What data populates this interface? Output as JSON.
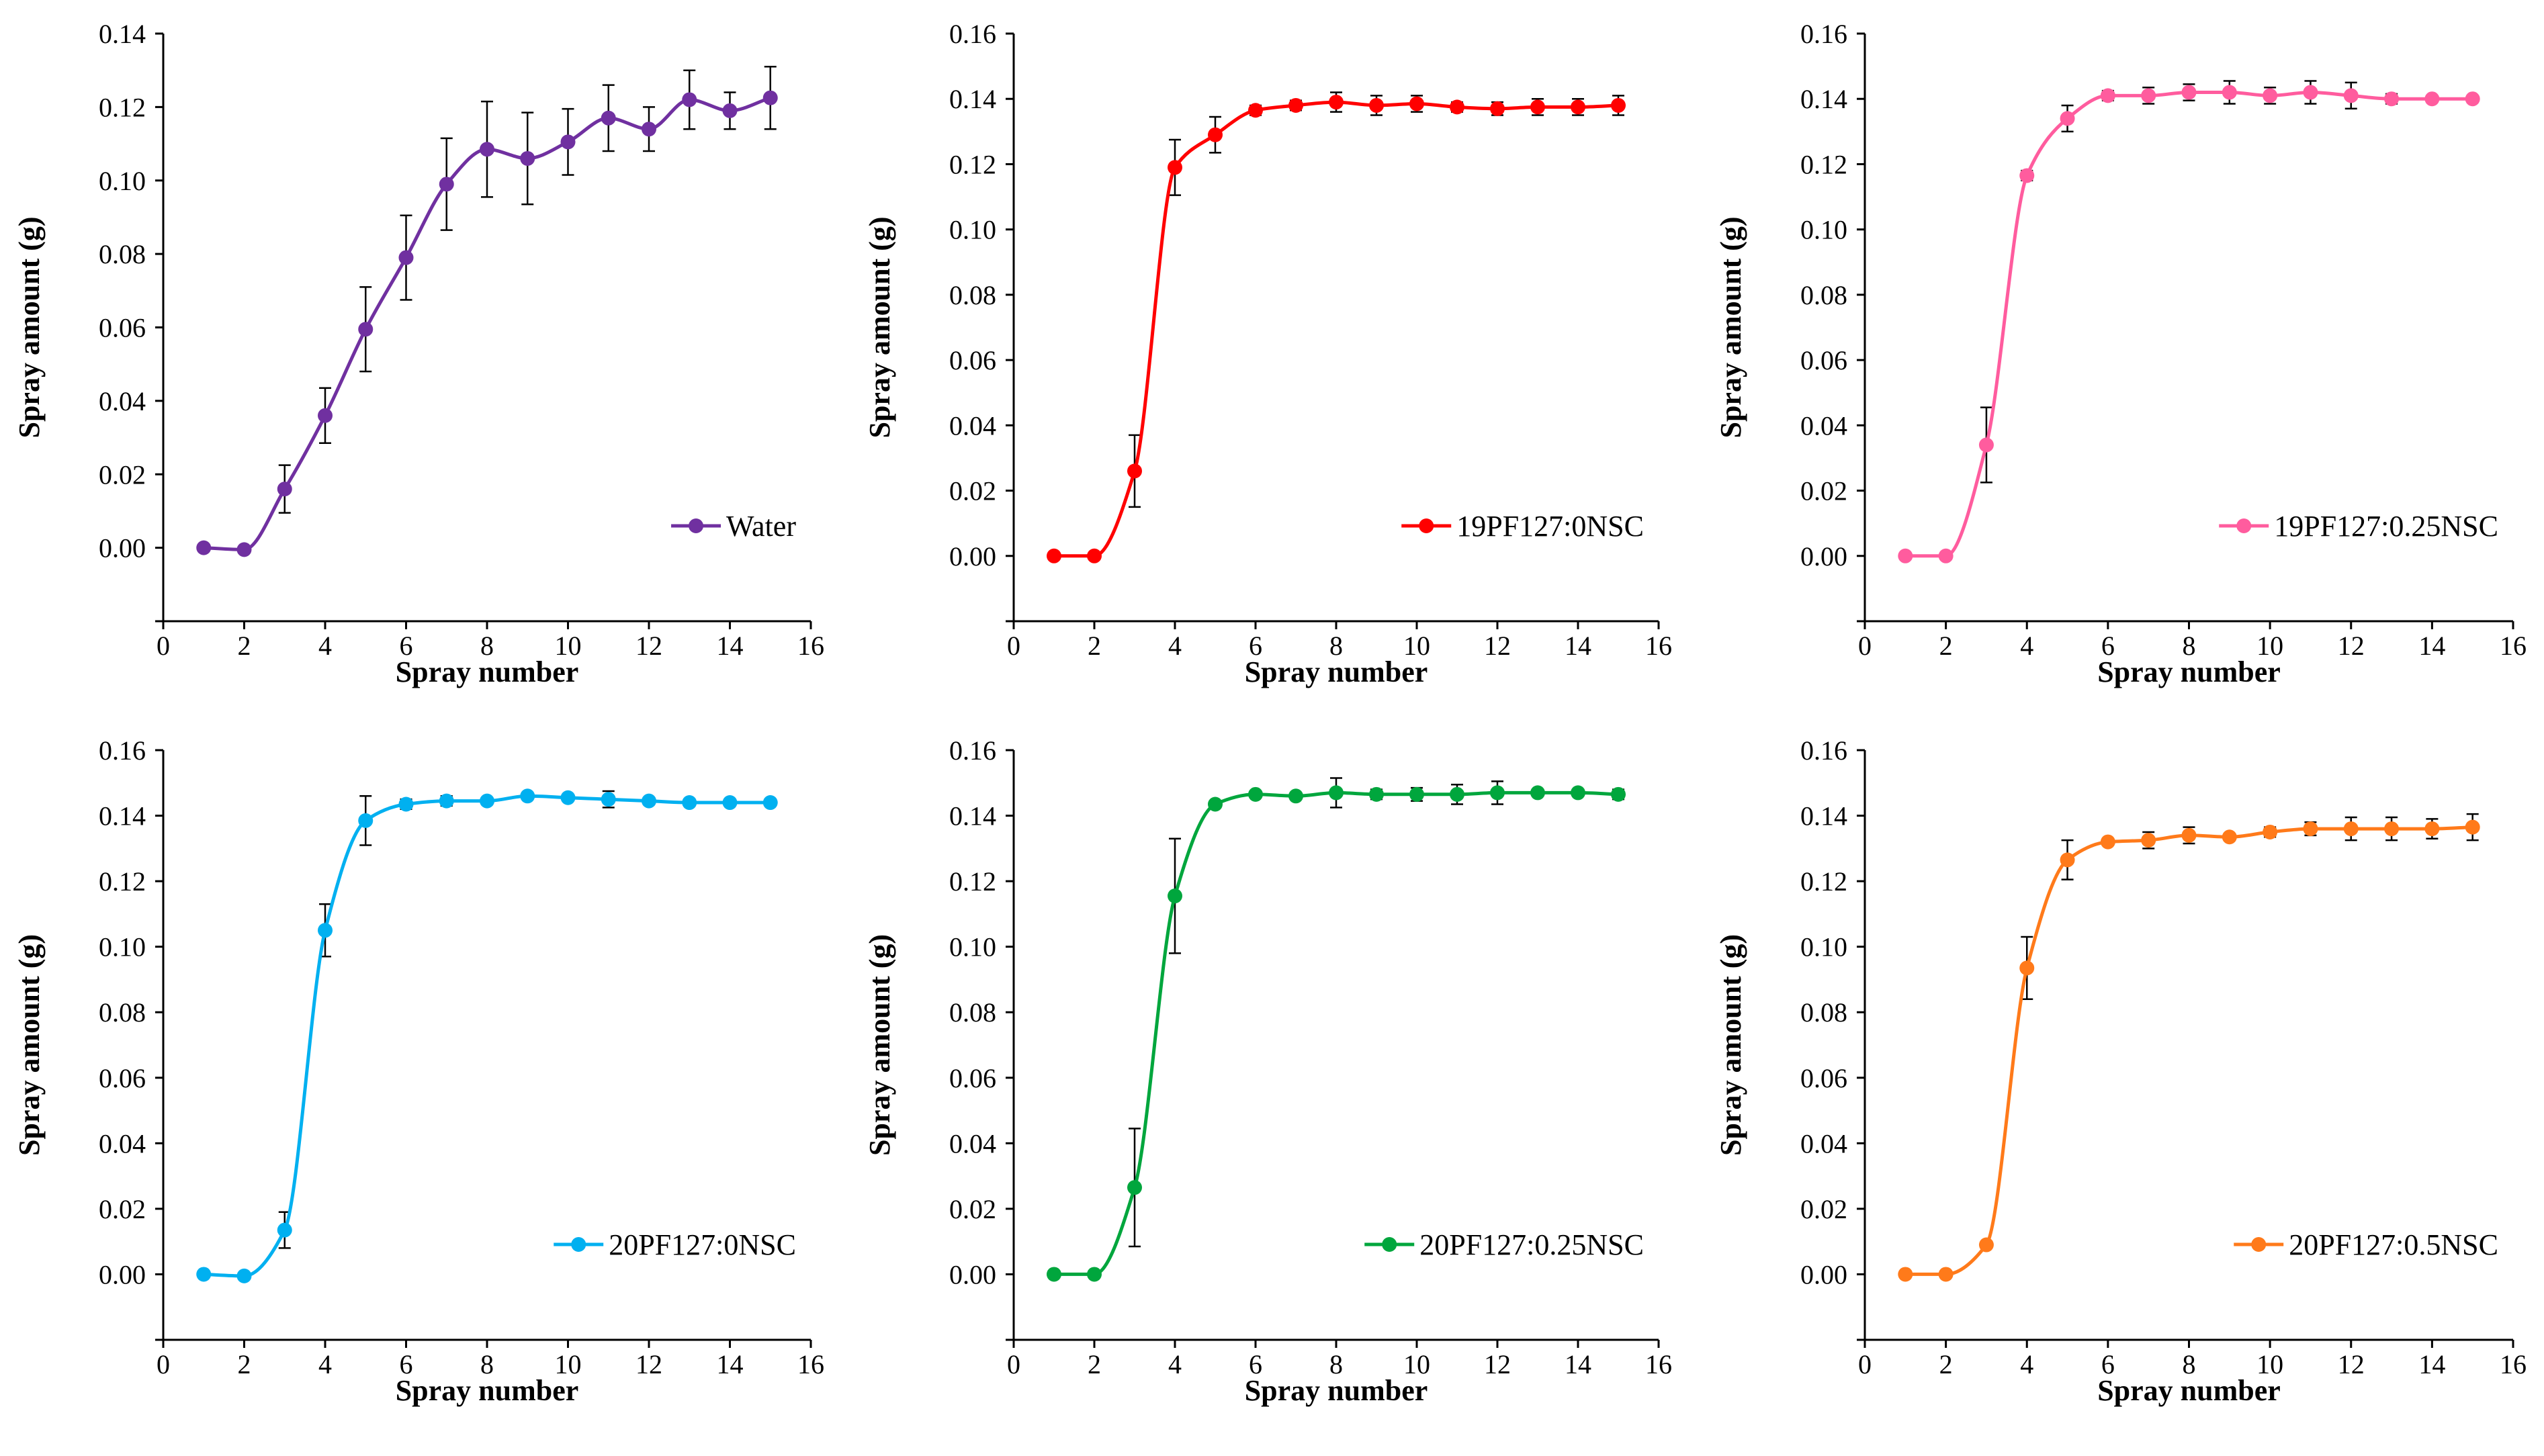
{
  "chart_data": [
    {
      "type": "line",
      "xlabel": "Spray number",
      "ylabel": "Spray amount (g)",
      "xlim": [
        0,
        16
      ],
      "ylim": [
        -0.02,
        0.14
      ],
      "x_ticks": [
        "0",
        "2",
        "4",
        "6",
        "8",
        "10",
        "12",
        "14",
        "16"
      ],
      "y_ticks": [
        "0.00",
        "0.02",
        "0.04",
        "0.06",
        "0.08",
        "0.10",
        "0.12",
        "0.14"
      ],
      "legend": "bottom-right",
      "series": [
        {
          "name": "Water",
          "color": "#7030A0",
          "x": [
            1,
            2,
            3,
            4,
            5,
            6,
            7,
            8,
            9,
            10,
            11,
            12,
            13,
            14,
            15
          ],
          "values": [
            0.0,
            -0.0005,
            0.016,
            0.036,
            0.0595,
            0.079,
            0.099,
            0.1085,
            0.106,
            0.1105,
            0.117,
            0.114,
            0.122,
            0.119,
            0.1225
          ],
          "errors": [
            0,
            0,
            0.0065,
            0.0075,
            0.0115,
            0.0115,
            0.0125,
            0.013,
            0.0125,
            0.009,
            0.009,
            0.006,
            0.008,
            0.005,
            0.0085
          ]
        }
      ]
    },
    {
      "type": "line",
      "xlabel": "Spray number",
      "ylabel": "Spray amount (g)",
      "xlim": [
        0,
        16
      ],
      "ylim": [
        -0.02,
        0.16
      ],
      "x_ticks": [
        "0",
        "2",
        "4",
        "6",
        "8",
        "10",
        "12",
        "14",
        "16"
      ],
      "y_ticks": [
        "0.00",
        "0.02",
        "0.04",
        "0.06",
        "0.08",
        "0.10",
        "0.12",
        "0.14",
        "0.16"
      ],
      "legend": "bottom-right",
      "series": [
        {
          "name": "19PF127:0NSC",
          "color": "#FF0000",
          "x": [
            1,
            2,
            3,
            4,
            5,
            6,
            7,
            8,
            9,
            10,
            11,
            12,
            13,
            14,
            15
          ],
          "values": [
            0.0,
            0.0,
            0.026,
            0.119,
            0.129,
            0.1365,
            0.138,
            0.139,
            0.138,
            0.1385,
            0.1375,
            0.137,
            0.1375,
            0.1375,
            0.138
          ],
          "errors": [
            0,
            0,
            0.011,
            0.0085,
            0.0055,
            0.0015,
            0.0015,
            0.003,
            0.003,
            0.0025,
            0.0015,
            0.002,
            0.0025,
            0.0025,
            0.003
          ]
        }
      ]
    },
    {
      "type": "line",
      "xlabel": "Spray number",
      "ylabel": "Spray amount (g)",
      "xlim": [
        0,
        16
      ],
      "ylim": [
        -0.02,
        0.16
      ],
      "x_ticks": [
        "0",
        "2",
        "4",
        "6",
        "8",
        "10",
        "12",
        "14",
        "16"
      ],
      "y_ticks": [
        "0.00",
        "0.02",
        "0.04",
        "0.06",
        "0.08",
        "0.10",
        "0.12",
        "0.14",
        "0.16"
      ],
      "legend": "bottom-right",
      "series": [
        {
          "name": "19PF127:0.25NSC",
          "color": "#FF5C9E",
          "x": [
            1,
            2,
            3,
            4,
            5,
            6,
            7,
            8,
            9,
            10,
            11,
            12,
            13,
            14,
            15
          ],
          "values": [
            0.0,
            0.0,
            0.034,
            0.1165,
            0.134,
            0.141,
            0.141,
            0.142,
            0.142,
            0.141,
            0.142,
            0.141,
            0.14,
            0.14,
            0.14
          ],
          "errors": [
            0,
            0,
            0.0115,
            0.0015,
            0.004,
            0.0015,
            0.0025,
            0.0025,
            0.0035,
            0.0025,
            0.0035,
            0.004,
            0.0015,
            0.001,
            0.001
          ]
        }
      ]
    },
    {
      "type": "line",
      "xlabel": "Spray number",
      "ylabel": "Spray amount (g)",
      "xlim": [
        0,
        16
      ],
      "ylim": [
        -0.02,
        0.16
      ],
      "x_ticks": [
        "0",
        "2",
        "4",
        "6",
        "8",
        "10",
        "12",
        "14",
        "16"
      ],
      "y_ticks": [
        "0.00",
        "0.02",
        "0.04",
        "0.06",
        "0.08",
        "0.10",
        "0.12",
        "0.14",
        "0.16"
      ],
      "legend": "bottom-right",
      "series": [
        {
          "name": "20PF127:0NSC",
          "color": "#00B0F0",
          "x": [
            1,
            2,
            3,
            4,
            5,
            6,
            7,
            8,
            9,
            10,
            11,
            12,
            13,
            14,
            15
          ],
          "values": [
            0.0,
            -0.0005,
            0.0135,
            0.105,
            0.1385,
            0.1435,
            0.1445,
            0.1445,
            0.146,
            0.1455,
            0.145,
            0.1445,
            0.144,
            0.144,
            0.144
          ],
          "errors": [
            0,
            0,
            0.0055,
            0.008,
            0.0075,
            0.0015,
            0.0015,
            0.001,
            0.001,
            0.001,
            0.0025,
            0.001,
            0.001,
            0.001,
            0.001
          ]
        }
      ]
    },
    {
      "type": "line",
      "xlabel": "Spray number",
      "ylabel": "Spray amount (g)",
      "xlim": [
        0,
        16
      ],
      "ylim": [
        -0.02,
        0.16
      ],
      "x_ticks": [
        "0",
        "2",
        "4",
        "6",
        "8",
        "10",
        "12",
        "14",
        "16"
      ],
      "y_ticks": [
        "0.00",
        "0.02",
        "0.04",
        "0.06",
        "0.08",
        "0.10",
        "0.12",
        "0.14",
        "0.16"
      ],
      "legend": "bottom-right",
      "series": [
        {
          "name": "20PF127:0.25NSC",
          "color": "#00A63D",
          "x": [
            1,
            2,
            3,
            4,
            5,
            6,
            7,
            8,
            9,
            10,
            11,
            12,
            13,
            14,
            15
          ],
          "values": [
            0.0,
            0.0,
            0.0265,
            0.1155,
            0.1435,
            0.1465,
            0.146,
            0.147,
            0.1465,
            0.1465,
            0.1465,
            0.147,
            0.147,
            0.147,
            0.1465
          ],
          "errors": [
            0,
            0,
            0.018,
            0.0175,
            0.001,
            0.001,
            0.001,
            0.0045,
            0.0015,
            0.002,
            0.003,
            0.0035,
            0.001,
            0.001,
            0.0015
          ]
        }
      ]
    },
    {
      "type": "line",
      "xlabel": "Spray number",
      "ylabel": "Spray amount (g)",
      "xlim": [
        0,
        16
      ],
      "ylim": [
        -0.02,
        0.16
      ],
      "x_ticks": [
        "0",
        "2",
        "4",
        "6",
        "8",
        "10",
        "12",
        "14",
        "16"
      ],
      "y_ticks": [
        "0.00",
        "0.02",
        "0.04",
        "0.06",
        "0.08",
        "0.10",
        "0.12",
        "0.14",
        "0.16"
      ],
      "legend": "bottom-right",
      "series": [
        {
          "name": "20PF127:0.5NSC",
          "color": "#FF7A1A",
          "x": [
            1,
            2,
            3,
            4,
            5,
            6,
            7,
            8,
            9,
            10,
            11,
            12,
            13,
            14,
            15
          ],
          "values": [
            0.0,
            0.0,
            0.009,
            0.0935,
            0.1265,
            0.132,
            0.1325,
            0.134,
            0.1335,
            0.135,
            0.136,
            0.136,
            0.136,
            0.136,
            0.1365
          ],
          "errors": [
            0,
            0,
            0.001,
            0.0095,
            0.006,
            0.001,
            0.0025,
            0.0025,
            0.001,
            0.0015,
            0.002,
            0.0035,
            0.0035,
            0.003,
            0.004
          ]
        }
      ]
    }
  ]
}
